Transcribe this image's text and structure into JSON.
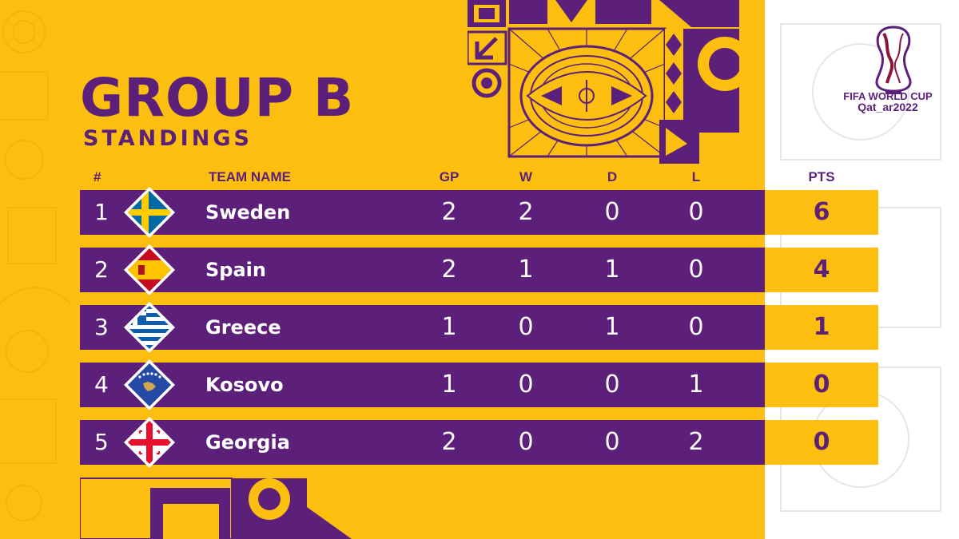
{
  "header": {
    "title": "GROUP B",
    "subtitle": "STANDINGS"
  },
  "columns": {
    "rank": "#",
    "team": "TEAM NAME",
    "gp": "GP",
    "w": "W",
    "d": "D",
    "l": "L",
    "pts": "PTS"
  },
  "standings": [
    {
      "rank": "1",
      "team": "Sweden",
      "flag": "sweden-flag-icon",
      "gp": "2",
      "w": "2",
      "d": "0",
      "l": "0",
      "pts": "6"
    },
    {
      "rank": "2",
      "team": "Spain",
      "flag": "spain-flag-icon",
      "gp": "2",
      "w": "1",
      "d": "1",
      "l": "0",
      "pts": "4"
    },
    {
      "rank": "3",
      "team": "Greece",
      "flag": "greece-flag-icon",
      "gp": "1",
      "w": "0",
      "d": "1",
      "l": "0",
      "pts": "1"
    },
    {
      "rank": "4",
      "team": "Kosovo",
      "flag": "kosovo-flag-icon",
      "gp": "1",
      "w": "0",
      "d": "0",
      "l": "1",
      "pts": "0"
    },
    {
      "rank": "5",
      "team": "Georgia",
      "flag": "georgia-flag-icon",
      "gp": "2",
      "w": "0",
      "d": "0",
      "l": "2",
      "pts": "0"
    }
  ],
  "logo": {
    "line1": "FIFA WORLD CUP",
    "line2": "Qat_ar2022",
    "icon": "world-cup-trophy-icon"
  },
  "colors": {
    "purple": "#5c1f7a",
    "yellow": "#fcbf10",
    "white": "#ffffff"
  }
}
